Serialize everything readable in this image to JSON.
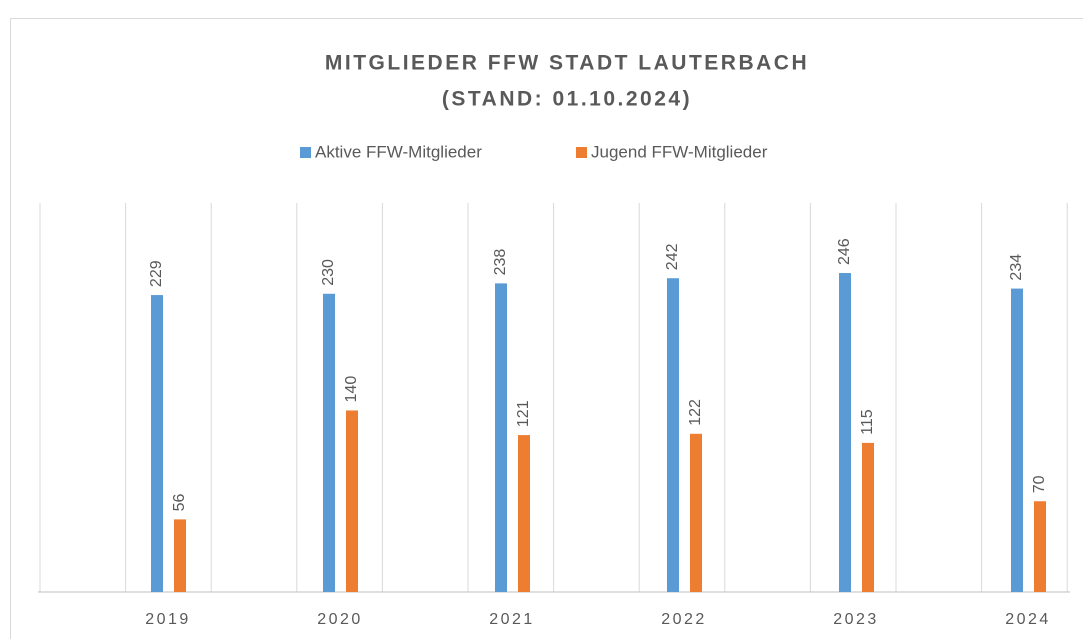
{
  "chart_data": {
    "type": "bar",
    "title": [
      "MITGLIEDER FFW STADT LAUTERBACH",
      "(STAND: 01.10.2024)"
    ],
    "categories": [
      "2019",
      "2020",
      "2021",
      "2022",
      "2023",
      "2024"
    ],
    "series": [
      {
        "name": "Aktive FFW-Mitglieder",
        "color": "#5b9bd5",
        "values": [
          229,
          230,
          238,
          242,
          246,
          234
        ]
      },
      {
        "name": "Jugend FFW-Mitglieder",
        "color": "#ed7d31",
        "values": [
          56,
          140,
          121,
          122,
          115,
          70
        ]
      }
    ],
    "ylim": [
      0,
      300
    ],
    "legend": "top",
    "grid": true
  }
}
